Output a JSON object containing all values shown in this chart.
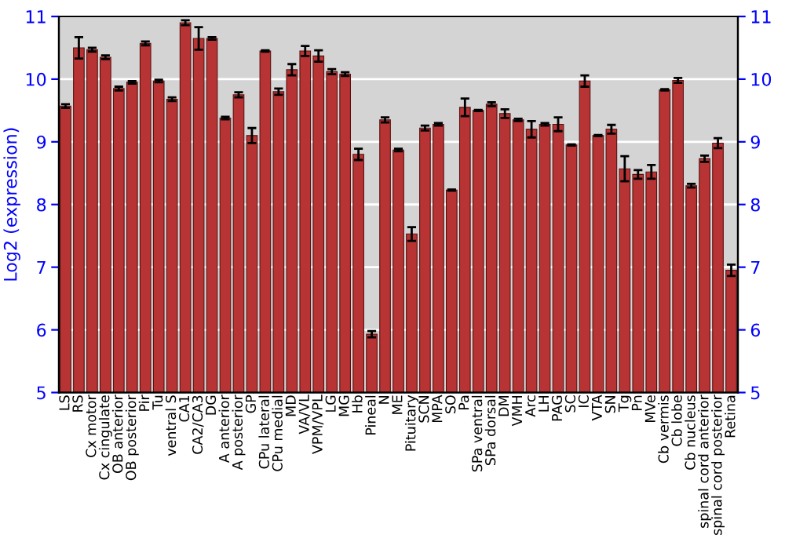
{
  "chart_data": {
    "type": "bar",
    "ylabel": "Log2 (expression)",
    "categories": [
      "LS",
      "RS",
      "Cx motor",
      "Cx cingulate",
      "OB anterior",
      "OB posterior",
      "Pir",
      "Tu",
      "ventral S",
      "CA1",
      "CA2/CA3",
      "DG",
      "A anterior",
      "A posterior",
      "GP",
      "CPu lateral",
      "CPu medial",
      "MD",
      "VA/VL",
      "VPM/VPL",
      "LG",
      "MG",
      "Hb",
      "Pineal",
      "N",
      "ME",
      "Pituitary",
      "SCN",
      "MPA",
      "SO",
      "Pa",
      "SPa ventral",
      "SPa dorsal",
      "DM",
      "VMH",
      "Arc",
      "LH",
      "PAG",
      "SC",
      "IC",
      "VTA",
      "SN",
      "Tg",
      "Pn",
      "MVe",
      "Cb vermis",
      "Cb lobe",
      "Cb nucleus",
      "spinal cord anterior",
      "spinal cord posterior",
      "Retina"
    ],
    "values": [
      9.57,
      10.5,
      10.47,
      10.35,
      9.85,
      9.95,
      10.57,
      9.97,
      9.68,
      10.9,
      10.65,
      10.65,
      9.38,
      9.75,
      9.1,
      10.45,
      9.8,
      10.15,
      10.45,
      10.37,
      10.12,
      10.08,
      8.8,
      5.93,
      9.35,
      8.87,
      7.53,
      9.22,
      9.28,
      8.23,
      9.55,
      9.5,
      9.6,
      9.45,
      9.35,
      9.2,
      9.28,
      9.28,
      8.95,
      9.97,
      9.1,
      9.2,
      8.57,
      8.48,
      8.52,
      9.83,
      9.98,
      8.3,
      8.73,
      8.98,
      6.95
    ],
    "errors": [
      0.03,
      0.17,
      0.03,
      0.03,
      0.03,
      0.02,
      0.03,
      0.02,
      0.03,
      0.04,
      0.18,
      0.02,
      0.02,
      0.04,
      0.12,
      0.01,
      0.05,
      0.09,
      0.08,
      0.09,
      0.04,
      0.03,
      0.09,
      0.05,
      0.04,
      0.02,
      0.11,
      0.04,
      0.02,
      0.01,
      0.14,
      0.01,
      0.03,
      0.07,
      0.02,
      0.13,
      0.02,
      0.11,
      0.01,
      0.09,
      0.01,
      0.07,
      0.2,
      0.07,
      0.11,
      0.01,
      0.04,
      0.03,
      0.05,
      0.08,
      0.09
    ],
    "color": "#b83434",
    "ylim": [
      5,
      11
    ],
    "yticks": [
      5,
      6,
      7,
      8,
      9,
      10,
      11
    ],
    "y2lim": [
      5,
      11
    ],
    "y2ticks": [
      5,
      6,
      7,
      8,
      9,
      10,
      11
    ],
    "grid": "y"
  }
}
